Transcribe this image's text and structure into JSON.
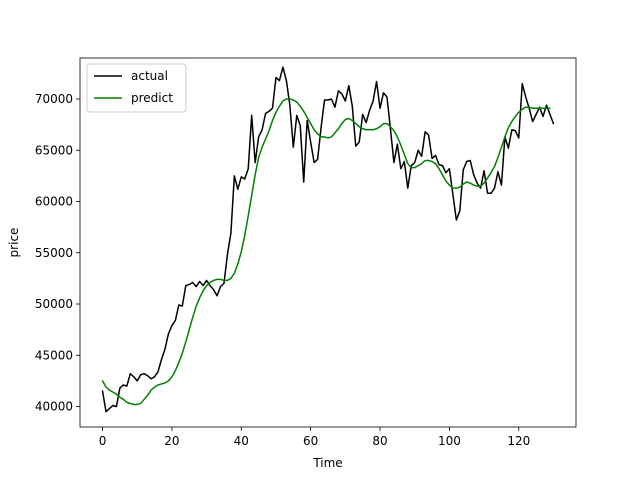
{
  "chart_data": {
    "type": "line",
    "title": "",
    "xlabel": "Time",
    "ylabel": "price",
    "xlim": [
      -6.5,
      136.5
    ],
    "ylim": [
      38000,
      74000
    ],
    "xticks": [
      0,
      20,
      40,
      60,
      80,
      100,
      120
    ],
    "yticks": [
      40000,
      45000,
      50000,
      55000,
      60000,
      65000,
      70000
    ],
    "grid": false,
    "legend_position": "top-left",
    "series": [
      {
        "name": "actual",
        "color": "#000000",
        "values": [
          41500,
          39500,
          39800,
          40100,
          40000,
          41800,
          42100,
          42000,
          43200,
          42900,
          42500,
          43100,
          43200,
          43000,
          42700,
          42900,
          43400,
          44600,
          45600,
          47100,
          47900,
          48400,
          49900,
          49800,
          51800,
          51900,
          52100,
          51700,
          52200,
          51800,
          52300,
          51800,
          51400,
          50800,
          51700,
          52000,
          54800,
          56900,
          62500,
          61200,
          62400,
          62200,
          63200,
          68400,
          63800,
          66300,
          67000,
          68600,
          68800,
          69100,
          72100,
          71800,
          73100,
          71800,
          69400,
          65300,
          68400,
          67400,
          61900,
          67900,
          65800,
          63800,
          64100,
          67200,
          69900,
          69900,
          70000,
          69200,
          70800,
          70500,
          69800,
          71300,
          69300,
          65400,
          65800,
          68500,
          67700,
          68900,
          69800,
          71700,
          69100,
          70600,
          70200,
          67100,
          63800,
          65600,
          63200,
          63900,
          61300,
          63500,
          63800,
          65000,
          64400,
          66800,
          66500,
          64200,
          64500,
          63600,
          63500,
          62800,
          63200,
          60700,
          58200,
          59100,
          63100,
          63900,
          64000,
          62600,
          61800,
          61300,
          63000,
          60800,
          60800,
          61300,
          62900,
          61600,
          66300,
          65200,
          67000,
          66900,
          66200,
          71500,
          70200,
          69100,
          67800,
          68500,
          69200,
          68300,
          69400,
          68500,
          67600
        ]
      },
      {
        "name": "predict",
        "color": "#008000",
        "values": [
          42500,
          41900,
          41600,
          41400,
          41200,
          40900,
          40700,
          40400,
          40300,
          40200,
          40200,
          40300,
          40700,
          41100,
          41600,
          41900,
          42100,
          42200,
          42300,
          42500,
          42900,
          43500,
          44300,
          45200,
          46300,
          47500,
          48700,
          49800,
          50600,
          51300,
          51800,
          52100,
          52300,
          52400,
          52400,
          52300,
          52300,
          52500,
          53000,
          53900,
          55100,
          56700,
          58600,
          60600,
          62600,
          64300,
          65300,
          66100,
          66900,
          67900,
          68700,
          69300,
          69800,
          70000,
          70000,
          69900,
          69700,
          69300,
          68800,
          68200,
          67600,
          67000,
          66600,
          66300,
          66300,
          66200,
          66300,
          66700,
          67100,
          67600,
          68000,
          68100,
          67900,
          67600,
          67300,
          67100,
          67000,
          67000,
          67000,
          67100,
          67300,
          67600,
          67600,
          67300,
          66900,
          66300,
          65500,
          64600,
          63700,
          63300,
          63300,
          63500,
          63700,
          64000,
          64000,
          63900,
          63700,
          63200,
          62600,
          62000,
          61600,
          61300,
          61300,
          61400,
          61700,
          61900,
          61800,
          61600,
          61500,
          61500,
          61800,
          62300,
          62800,
          63400,
          64300,
          65300,
          66300,
          67200,
          67800,
          68300,
          68700,
          69000,
          69200,
          69200,
          69100,
          69100,
          69100,
          69100,
          69100,
          69100
        ]
      }
    ]
  }
}
